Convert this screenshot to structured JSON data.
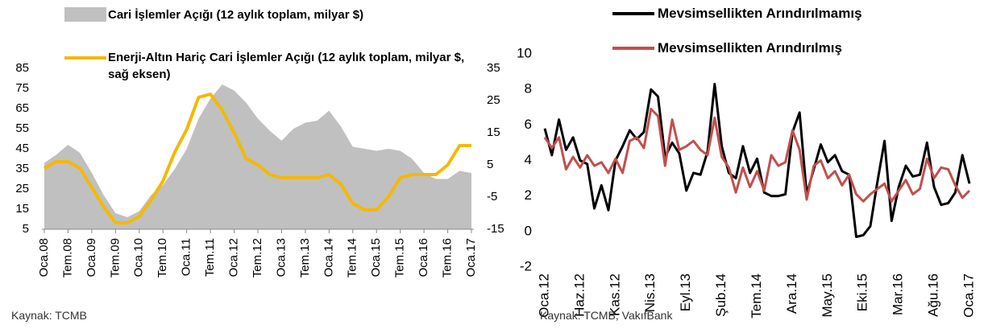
{
  "chart_data": [
    {
      "type": "combo",
      "categories": [
        "Oca.08",
        null,
        "Tem.08",
        null,
        "Oca.09",
        null,
        "Tem.09",
        null,
        "Oca.10",
        null,
        "Tem.10",
        null,
        "Oca.11",
        null,
        "Tem.11",
        null,
        "Oca.12",
        null,
        "Tem.12",
        null,
        "Oca.13",
        null,
        "Tem.13",
        null,
        "Oca.14",
        null,
        "Tem.14",
        null,
        "Oca.15",
        null,
        "Tem.15",
        null,
        "Oca.16",
        null,
        "Tem.16",
        null,
        "Oca.17"
      ],
      "series": [
        {
          "name": "Cari İşlemler Açığı (12 aylık toplam, milyar $)",
          "type": "area",
          "color": "#c0c0c0",
          "values": [
            38,
            42,
            47,
            43,
            33,
            22,
            13,
            11,
            14,
            22,
            27,
            35,
            45,
            60,
            70,
            77,
            74,
            68,
            60,
            54,
            49,
            55,
            58,
            59,
            64,
            56,
            46,
            45,
            44,
            45,
            44,
            40,
            33,
            30,
            30,
            34,
            33
          ]
        },
        {
          "name": "Enerji-Altın Hariç Cari İşlemler Açığı (12 aylık toplam, milyar $, sağ eksen)",
          "type": "line",
          "axis": "y2",
          "color": "#f5b800",
          "values": [
            4,
            6,
            6,
            4,
            -2,
            -8,
            -13,
            -13,
            -11,
            -6,
            0,
            9,
            16,
            26,
            27,
            22,
            15,
            7,
            5,
            2,
            1,
            1,
            1,
            1,
            2,
            -1,
            -7,
            -9,
            -9,
            -5,
            1,
            2,
            2,
            2,
            5,
            11,
            11
          ]
        }
      ],
      "ylim": [
        5,
        85
      ],
      "yticks": [
        5,
        15,
        25,
        35,
        45,
        55,
        65,
        75,
        85
      ],
      "y2lim": [
        -15,
        35
      ],
      "y2ticks": [
        -15,
        -5,
        5,
        15,
        25,
        35
      ],
      "source": "Kaynak: TCMB"
    },
    {
      "type": "line",
      "categories": [
        "Oca.12",
        null,
        null,
        null,
        null,
        "Haz.12",
        null,
        null,
        null,
        null,
        "Kas.12",
        null,
        null,
        null,
        null,
        "Nis.13",
        null,
        null,
        null,
        null,
        "Eyl.13",
        null,
        null,
        null,
        null,
        "Şub.14",
        null,
        null,
        null,
        null,
        "Tem.14",
        null,
        null,
        null,
        null,
        "Ara.14",
        null,
        null,
        null,
        null,
        "May.15",
        null,
        null,
        null,
        null,
        "Eki.15",
        null,
        null,
        null,
        null,
        "Mar.16",
        null,
        null,
        null,
        null,
        "Ağu.16",
        null,
        null,
        null,
        null,
        "Oca.17"
      ],
      "series": [
        {
          "name": "Mevsimsellikten Arındırılmamış",
          "color": "#000000",
          "values": [
            5.8,
            4.3,
            6.3,
            4.6,
            5.3,
            4.0,
            3.8,
            1.3,
            2.6,
            1.2,
            4.0,
            4.8,
            5.7,
            5.2,
            5.6,
            8.0,
            7.6,
            4.2,
            5.0,
            4.4,
            2.3,
            3.3,
            3.2,
            4.5,
            8.3,
            4.8,
            3.3,
            3.0,
            4.8,
            3.3,
            4.1,
            2.2,
            2.0,
            2.0,
            2.1,
            5.6,
            6.7,
            2.1,
            3.5,
            4.9,
            3.9,
            4.3,
            3.4,
            3.2,
            -0.3,
            -0.2,
            0.3,
            2.8,
            5.1,
            0.6,
            2.5,
            3.7,
            3.1,
            3.2,
            5.0,
            2.5,
            1.5,
            1.6,
            2.2,
            4.3,
            2.7
          ]
        },
        {
          "name": "Mevsimsellikten Arındırılmış",
          "color": "#c0504d",
          "values": [
            5.3,
            4.7,
            5.3,
            3.5,
            4.2,
            3.6,
            4.3,
            3.7,
            3.9,
            3.3,
            4.1,
            3.3,
            5.1,
            5.3,
            4.7,
            6.9,
            6.5,
            3.7,
            6.3,
            4.6,
            4.8,
            5.1,
            4.6,
            4.3,
            6.4,
            4.2,
            3.6,
            2.2,
            3.6,
            2.5,
            3.4,
            2.3,
            4.3,
            3.7,
            3.9,
            5.7,
            4.6,
            1.8,
            3.7,
            4.0,
            3.0,
            3.4,
            2.6,
            3.2,
            2.1,
            1.7,
            2.1,
            2.4,
            2.7,
            1.7,
            2.3,
            2.9,
            2.1,
            2.4,
            4.1,
            3.0,
            3.6,
            3.5,
            2.6,
            1.9,
            2.3
          ]
        }
      ],
      "ylim": [
        -2,
        10
      ],
      "yticks": [
        -2,
        0,
        2,
        4,
        6,
        8,
        10
      ],
      "source": "Kaynak: TCMB, VakıfBank"
    }
  ]
}
